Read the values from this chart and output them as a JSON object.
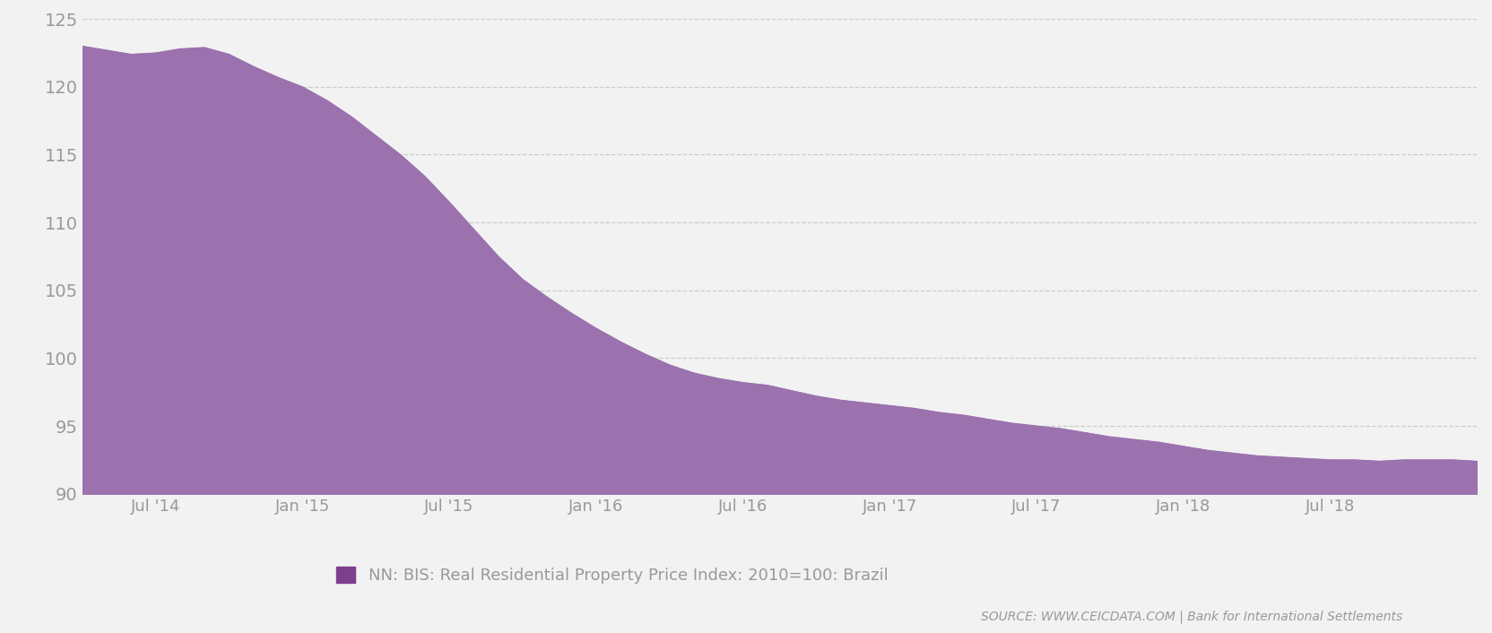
{
  "legend_label": "NN: BIS: Real Residential Property Price Index: 2010=100: Brazil",
  "source_text": "SOURCE: WWW.CEICDATA.COM | Bank for International Settlements",
  "fill_color": "#9B72AE",
  "background_color": "#f2f2f2",
  "plot_background_color": "#f2f2f2",
  "ylim": [
    90,
    125
  ],
  "yticks": [
    90,
    95,
    100,
    105,
    110,
    115,
    120,
    125
  ],
  "xtick_labels": [
    "Jul '14",
    "Jan '15",
    "Jul '15",
    "Jan '16",
    "Jul '16",
    "Jan '17",
    "Jul '17",
    "Jan '18",
    "Jul '18"
  ],
  "x_values": [
    0,
    1,
    2,
    3,
    4,
    5,
    6,
    7,
    8,
    9,
    10,
    11,
    12,
    13,
    14,
    15,
    16,
    17,
    18,
    19,
    20,
    21,
    22,
    23,
    24,
    25,
    26,
    27,
    28,
    29,
    30,
    31,
    32,
    33,
    34,
    35,
    36,
    37,
    38,
    39,
    40,
    41,
    42,
    43,
    44,
    45,
    46,
    47,
    48,
    49,
    50,
    51,
    52,
    53,
    54,
    55,
    56,
    57
  ],
  "y_values": [
    123.0,
    122.7,
    122.4,
    122.5,
    122.8,
    122.9,
    122.4,
    121.5,
    120.7,
    120.0,
    119.0,
    117.8,
    116.4,
    115.0,
    113.4,
    111.5,
    109.5,
    107.5,
    105.8,
    104.5,
    103.3,
    102.2,
    101.2,
    100.3,
    99.5,
    98.9,
    98.5,
    98.2,
    98.0,
    97.6,
    97.2,
    96.9,
    96.7,
    96.5,
    96.3,
    96.0,
    95.8,
    95.5,
    95.2,
    95.0,
    94.8,
    94.5,
    94.2,
    94.0,
    93.8,
    93.5,
    93.2,
    93.0,
    92.8,
    92.7,
    92.6,
    92.5,
    92.5,
    92.4,
    92.5,
    92.5,
    92.5,
    92.4
  ],
  "xtick_positions": [
    3,
    9,
    15,
    21,
    27,
    33,
    39,
    45,
    51
  ],
  "grid_color": "#cccccc",
  "legend_marker_color": "#7B3F8E",
  "text_color": "#999999",
  "ytick_fontsize": 14,
  "xtick_fontsize": 13
}
